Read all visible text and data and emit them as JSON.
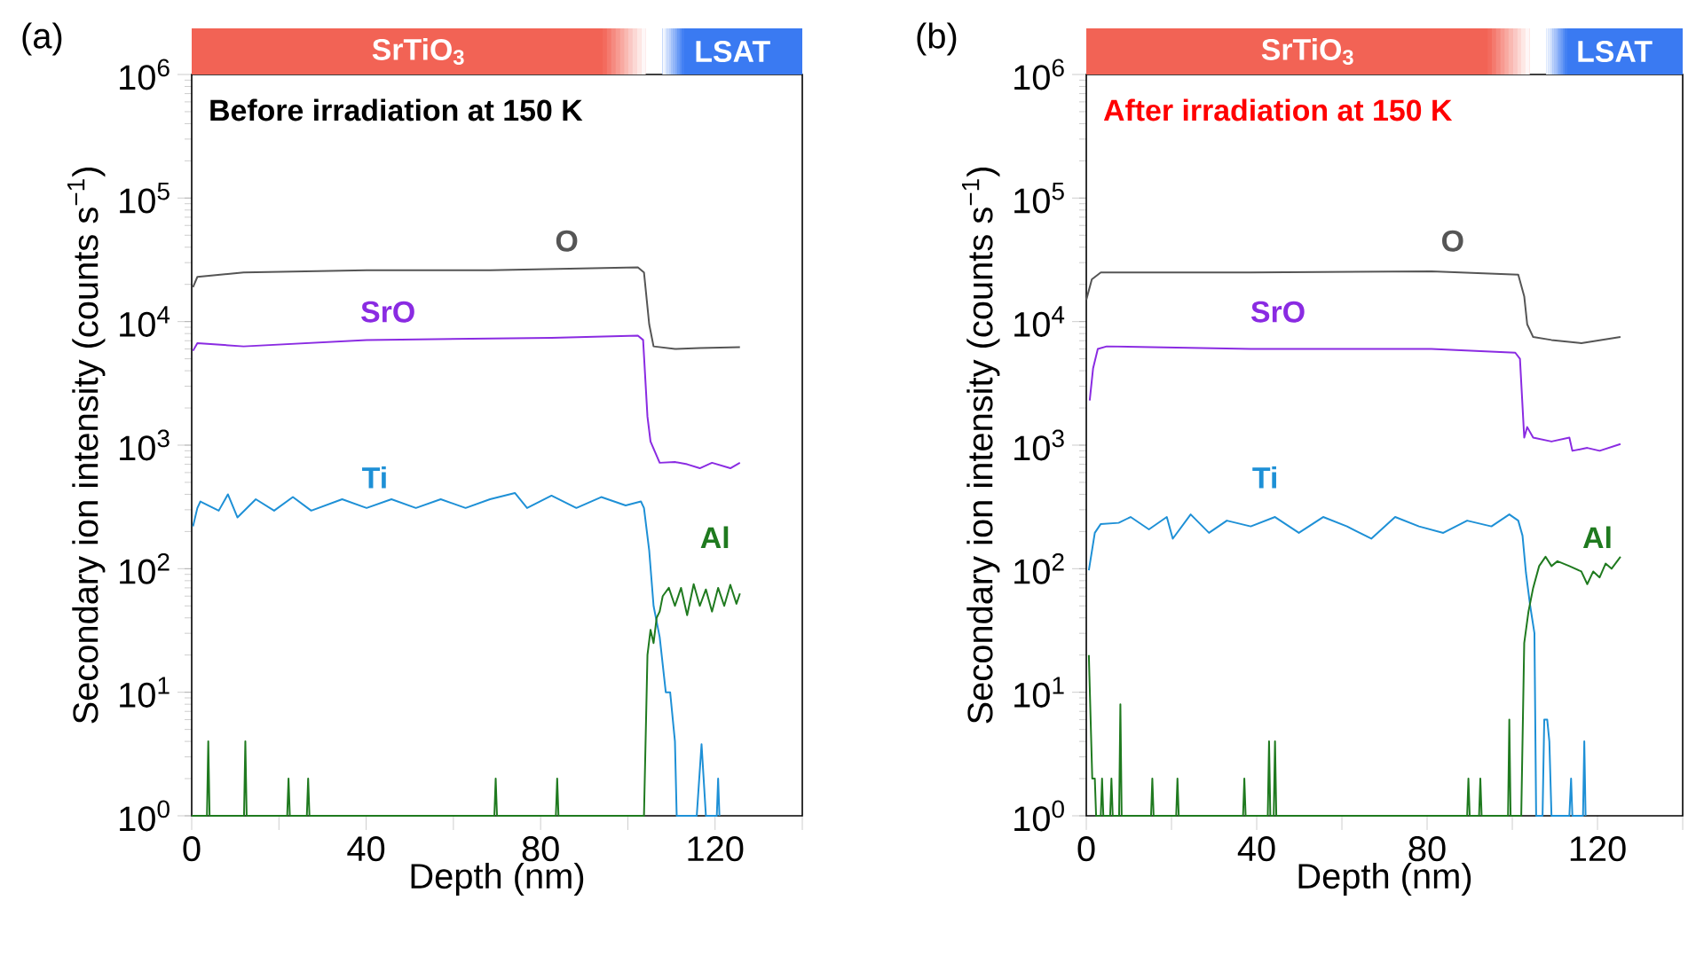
{
  "chart_data": [
    {
      "type": "line",
      "title": "(a)",
      "subtitle": "Before irradiation at 150 K",
      "xlabel": "Depth (nm)",
      "ylabel": "Secondary ion intensity (counts s$^{−1}$)",
      "log": "y",
      "xlim": [
        0,
        140
      ],
      "ylim": [
        1,
        1000000
      ],
      "xticks": [
        0,
        {
          "value": 20,
          "label": null
        },
        40,
        {
          "value": 60,
          "label": null
        },
        80,
        {
          "value": 100,
          "label": null
        },
        120,
        {
          "value": 140,
          "label": null
        }
      ],
      "yticks": [
        {
          "value": 1,
          "label": "10$^{0}$"
        },
        {
          "value": 10,
          "label": "10$^{1}$"
        },
        {
          "value": 100,
          "label": "10$^{2}$"
        },
        {
          "value": 1000,
          "label": "10$^{3}$"
        },
        {
          "value": 10000,
          "label": "10$^{4}$"
        },
        {
          "value": 100000,
          "label": "10$^{5}$"
        },
        {
          "value": 1000000,
          "label": "10$^{6}$"
        }
      ],
      "annotations": [
        "SrTiO$_{3}$",
        "LSAT"
      ],
      "series": [
        {
          "name": "O",
          "color": "#555555",
          "x": [
            0.3,
            1.3,
            11.9,
            40.1,
            68.4,
            102.3,
            103.7,
            104.9,
            105.9,
            110.8,
            116.5,
            125.7
          ],
          "values": [
            19000,
            23000,
            25000,
            26000,
            26000,
            27500,
            25000,
            9500,
            6300,
            6000,
            6100,
            6200
          ]
        },
        {
          "name": "SrO",
          "color": "#8a2be2",
          "x": [
            0.3,
            1.3,
            11.9,
            40.1,
            82.5,
            102.3,
            103.5,
            104.5,
            105.2,
            107.3,
            110.8,
            113.6,
            116.5,
            119.3,
            123.5,
            125.7
          ],
          "values": [
            5800,
            6700,
            6300,
            7100,
            7400,
            7700,
            7100,
            1700,
            1070,
            720,
            730,
            700,
            650,
            720,
            650,
            720
          ]
        },
        {
          "name": "Ti",
          "color": "#1e90d6",
          "x": [
            0.3,
            1.3,
            2.0,
            6.2,
            8.3,
            10.5,
            14.7,
            18.9,
            23.2,
            27.4,
            34.5,
            40.1,
            45.8,
            51.4,
            57.1,
            62.8,
            68.4,
            74.1,
            76.9,
            82.5,
            88.2,
            93.9,
            99.5,
            103.0,
            103.7,
            104.9,
            105.9,
            107.3,
            108.7,
            109.7,
            110.8,
            111.2,
            115.8,
            116.9,
            117.9,
            120.4,
            120.7,
            121.0
          ],
          "values": [
            220,
            310,
            350,
            295,
            400,
            260,
            365,
            295,
            380,
            295,
            365,
            310,
            365,
            310,
            365,
            310,
            365,
            410,
            310,
            390,
            310,
            380,
            325,
            350,
            310,
            140,
            50,
            28,
            10,
            10,
            4,
            1,
            1,
            3.8,
            1,
            1,
            2,
            1
          ]
        },
        {
          "name": "Al",
          "color": "#1f7a1f",
          "x": [
            0,
            3.5,
            3.8,
            4.1,
            12.0,
            12.3,
            12.6,
            21.9,
            22.2,
            22.5,
            26.4,
            26.7,
            27.0,
            69.4,
            69.7,
            70.0,
            83.5,
            83.8,
            84.1,
            103.7,
            104.5,
            105.2,
            105.9,
            106.6,
            107.3,
            108.0,
            109.4,
            110.8,
            112.2,
            113.6,
            115.1,
            116.5,
            117.9,
            119.3,
            120.7,
            122.1,
            123.5,
            124.9,
            125.7
          ],
          "values": [
            1,
            1,
            4,
            1,
            1,
            4,
            1,
            1,
            2,
            1,
            1,
            2,
            1,
            1,
            2,
            1,
            1,
            2,
            1,
            1,
            20,
            32,
            25,
            40,
            45,
            60,
            70,
            50,
            70,
            42,
            75,
            50,
            68,
            45,
            70,
            50,
            74,
            52,
            63
          ]
        }
      ]
    },
    {
      "type": "line",
      "title": "(b)",
      "subtitle": "After irradiation at 150 K",
      "xlabel": "Depth (nm)",
      "ylabel": "Secondary ion intensity (counts s$^{−1}$)",
      "log": "y",
      "xlim": [
        0,
        140
      ],
      "ylim": [
        1,
        1000000
      ],
      "xticks": [
        0,
        {
          "value": 20,
          "label": null
        },
        40,
        {
          "value": 60,
          "label": null
        },
        80,
        {
          "value": 100,
          "label": null
        },
        120,
        {
          "value": 140,
          "label": null
        }
      ],
      "yticks": [
        {
          "value": 1,
          "label": "10$^{0}$"
        },
        {
          "value": 10,
          "label": "10$^{1}$"
        },
        {
          "value": 100,
          "label": "10$^{2}$"
        },
        {
          "value": 1000,
          "label": "10$^{3}$"
        },
        {
          "value": 10000,
          "label": "10$^{4}$"
        },
        {
          "value": 100000,
          "label": "10$^{5}$"
        },
        {
          "value": 1000000,
          "label": "10$^{6}$"
        }
      ],
      "annotations": [
        "SrTiO$_{3}$",
        "LSAT"
      ],
      "series": [
        {
          "name": "O",
          "color": "#555555",
          "x": [
            0,
            1.3,
            3.4,
            38.6,
            81.0,
            101.4,
            102.8,
            103.5,
            104.9,
            109.2,
            116.2,
            125.4
          ],
          "values": [
            15000,
            22000,
            25000,
            25000,
            25500,
            24000,
            16000,
            9500,
            7500,
            7100,
            6700,
            7500
          ]
        },
        {
          "name": "SrO",
          "color": "#8a2be2",
          "x": [
            0.8,
            1.6,
            2.7,
            4.8,
            38.6,
            81.0,
            100.7,
            101.8,
            102.8,
            103.5,
            104.9,
            109.2,
            113.4,
            114.1,
            117.6,
            120.5,
            125.4
          ],
          "values": [
            2300,
            4200,
            6000,
            6300,
            6000,
            6000,
            5600,
            5000,
            1150,
            1400,
            1150,
            1070,
            1150,
            900,
            950,
            900,
            1020
          ]
        },
        {
          "name": "Ti",
          "color": "#1e90d6",
          "x": [
            0.6,
            2.0,
            3.4,
            7.6,
            10.4,
            14.7,
            18.9,
            20.3,
            24.5,
            28.8,
            33.0,
            38.6,
            44.3,
            49.9,
            55.6,
            61.2,
            66.9,
            72.5,
            78.1,
            83.8,
            89.4,
            95.1,
            99.3,
            101.4,
            102.4,
            103.2,
            104.2,
            105.2,
            105.6,
            107.1,
            107.5,
            108.2,
            108.7,
            109.2,
            113.4,
            113.8,
            114.1,
            116.6,
            116.9,
            117.2
          ],
          "values": [
            97,
            195,
            230,
            235,
            262,
            208,
            262,
            175,
            275,
            195,
            245,
            220,
            262,
            195,
            262,
            220,
            175,
            262,
            220,
            195,
            245,
            220,
            275,
            245,
            185,
            93,
            50,
            30,
            1,
            1,
            6,
            6,
            4,
            1,
            1,
            2,
            1,
            1,
            4,
            1
          ]
        },
        {
          "name": "Al",
          "color": "#1f7a1f",
          "x": [
            0.6,
            1.4,
            2.0,
            2.3,
            3.4,
            3.7,
            4.0,
            5.6,
            5.9,
            6.2,
            7.7,
            8.0,
            8.3,
            15.2,
            15.5,
            15.8,
            21.1,
            21.4,
            21.7,
            36.8,
            37.1,
            37.4,
            42.6,
            42.9,
            43.2,
            44.0,
            44.3,
            44.6,
            89.4,
            89.7,
            90.0,
            92.2,
            92.5,
            92.8,
            99.0,
            99.3,
            99.6,
            102.1,
            102.8,
            103.8,
            104.9,
            106.3,
            107.8,
            109.2,
            110.6,
            113.4,
            116.2,
            117.6,
            119.0,
            120.5,
            121.9,
            123.3,
            125.4
          ],
          "values": [
            20,
            2,
            2,
            1,
            1,
            2,
            1,
            1,
            2,
            1,
            1,
            8,
            1,
            1,
            2,
            1,
            1,
            2,
            1,
            1,
            2,
            1,
            1,
            4,
            1,
            1,
            4,
            1,
            1,
            2,
            1,
            1,
            2,
            1,
            1,
            6,
            1,
            1,
            25,
            45,
            70,
            105,
            125,
            105,
            115,
            105,
            95,
            75,
            95,
            85,
            110,
            100,
            125
          ]
        }
      ]
    }
  ]
}
